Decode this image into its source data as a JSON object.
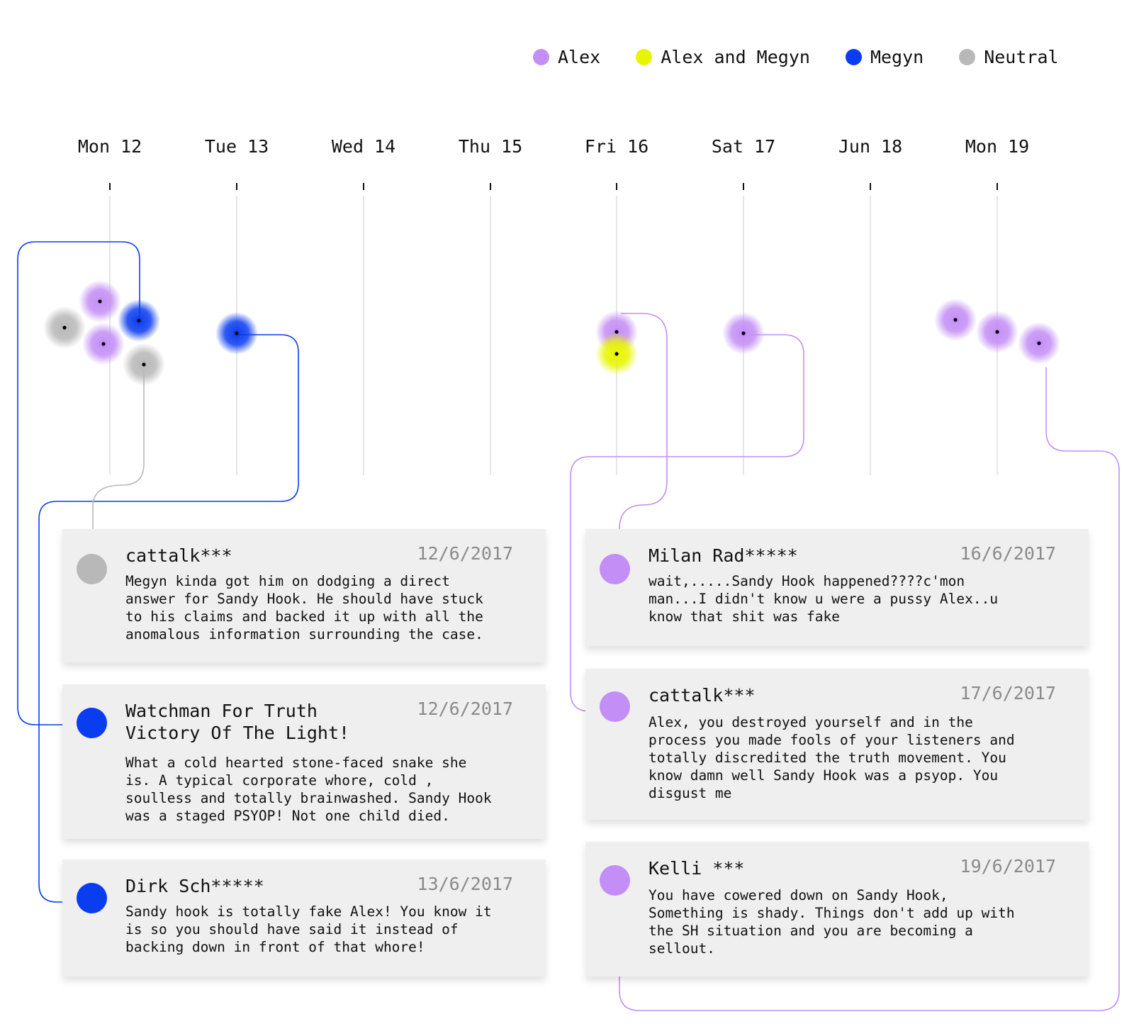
{
  "legend": [
    {
      "label": "Alex",
      "color": "#c38ef5"
    },
    {
      "label": "Alex and Megyn",
      "color": "#e8f500"
    },
    {
      "label": "Megyn",
      "color": "#0a3cf0"
    },
    {
      "label": "Neutral",
      "color": "#b8b8b8"
    }
  ],
  "timeline": {
    "days": [
      "Mon 12",
      "Tue 13",
      "Wed 14",
      "Thu 15",
      "Fri 16",
      "Sat 17",
      "Jun 18",
      "Mon 19"
    ]
  },
  "chart_data": {
    "type": "scatter",
    "x_categories": [
      "Mon 12",
      "Tue 13",
      "Wed 14",
      "Thu 15",
      "Fri 16",
      "Sat 17",
      "Jun 18",
      "Mon 19"
    ],
    "series": [
      {
        "name": "Alex",
        "color": "#c38ef5",
        "points": [
          {
            "day": "Mon 12"
          },
          {
            "day": "Mon 12"
          },
          {
            "day": "Fri 16"
          },
          {
            "day": "Sat 17"
          },
          {
            "day": "Mon 19"
          },
          {
            "day": "Mon 19"
          },
          {
            "day": "Mon 19"
          }
        ]
      },
      {
        "name": "Alex and Megyn",
        "color": "#e8f500",
        "points": [
          {
            "day": "Fri 16"
          }
        ]
      },
      {
        "name": "Megyn",
        "color": "#0a3cf0",
        "points": [
          {
            "day": "Mon 12"
          },
          {
            "day": "Tue 13"
          }
        ]
      },
      {
        "name": "Neutral",
        "color": "#b8b8b8",
        "points": [
          {
            "day": "Mon 12"
          },
          {
            "day": "Mon 12"
          }
        ]
      }
    ]
  },
  "comments": [
    {
      "user": "cattalk***",
      "date": "12/6/2017",
      "category": "Neutral",
      "color": "#b8b8b8",
      "text": "Megyn kinda got him on dodging a direct\nanswer for Sandy Hook. He should have stuck\nto his claims and backed it up with all the\nanomalous information surrounding the case."
    },
    {
      "user": "Watchman For Truth\nVictory Of The Light!",
      "date": "12/6/2017",
      "category": "Megyn",
      "color": "#0a3cf0",
      "text": "What a cold hearted stone-faced snake she\nis. A typical corporate whore, cold ,\nsoulless and totally brainwashed. Sandy Hook\nwas a staged PSYOP! Not one child died."
    },
    {
      "user": "Dirk Sch*****",
      "date": "13/6/2017",
      "category": "Megyn",
      "color": "#0a3cf0",
      "text": "Sandy hook is totally fake Alex! You know it\nis so you should have said it instead of\nbacking down in front of that whore!"
    },
    {
      "user": "Milan Rad*****",
      "date": "16/6/2017",
      "category": "Alex",
      "color": "#c38ef5",
      "text": "wait,.....Sandy Hook happened????c'mon\nman...I didn't know u were a pussy Alex..u\nknow that shit was fake"
    },
    {
      "user": "cattalk***",
      "date": "17/6/2017",
      "category": "Alex",
      "color": "#c38ef5",
      "text": "Alex, you destroyed yourself and in the\nprocess you made fools of your listeners and\ntotally discredited the truth movement. You\nknow damn well Sandy Hook was a psyop. You\ndisgust me"
    },
    {
      "user": "Kelli ***",
      "date": "19/6/2017",
      "category": "Alex",
      "color": "#c38ef5",
      "text": "You have cowered down on Sandy Hook,\nSomething is shady. Things don't add up with\nthe SH situation and you are becoming a\nsellout."
    }
  ]
}
